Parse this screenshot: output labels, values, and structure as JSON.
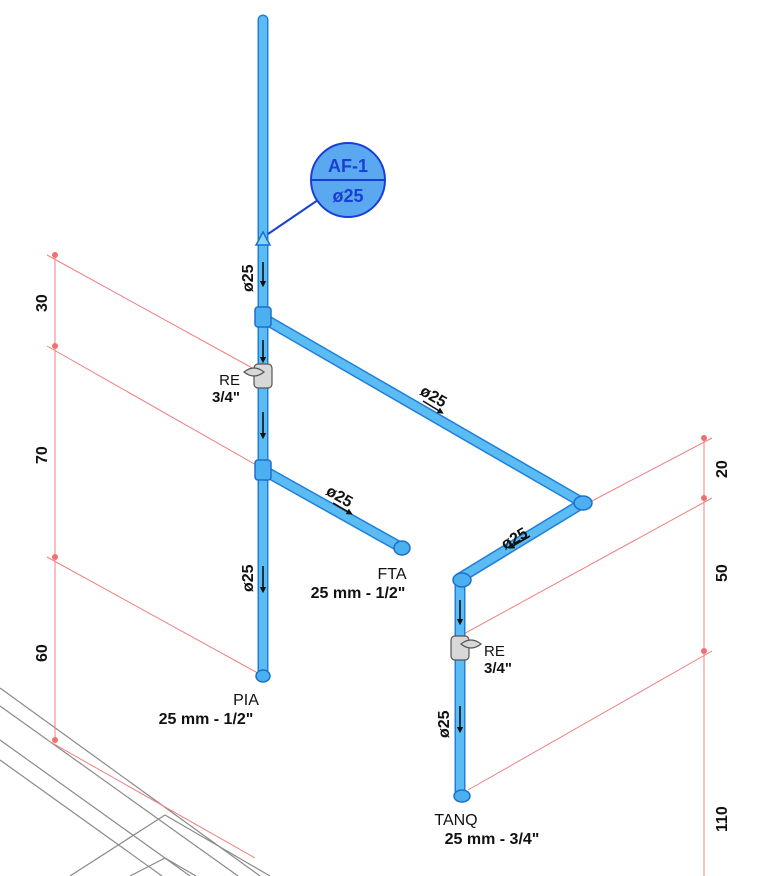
{
  "tag": {
    "top": "AF-1",
    "bottom": "ø25"
  },
  "pipe_labels": {
    "riser_top": "ø25",
    "diagonal_main": "ø25",
    "branch_fta": "ø25",
    "riser_lower": "ø25",
    "diagonal_return": "ø25",
    "drop_tanq": "ø25"
  },
  "valves": [
    {
      "line1": "RE",
      "line2": "3/4\""
    },
    {
      "line1": "RE",
      "line2": "3/4\""
    }
  ],
  "points": {
    "fta": {
      "name": "FTA",
      "spec": "25 mm - 1/2\""
    },
    "pia": {
      "name": "PIA",
      "spec": "25 mm - 1/2\""
    },
    "tanq": {
      "name": "TANQ",
      "spec": "25 mm - 3/4\""
    }
  },
  "dims_left": [
    "30",
    "70",
    "60"
  ],
  "dims_right": [
    "20",
    "50",
    "110"
  ],
  "colors": {
    "pipe": "#5bbcf4",
    "pipe_edge": "#1f7fd8",
    "dimension": "#f08080",
    "tag_fill": "#5aa8f0",
    "tag_stroke": "#1a3fd6"
  }
}
